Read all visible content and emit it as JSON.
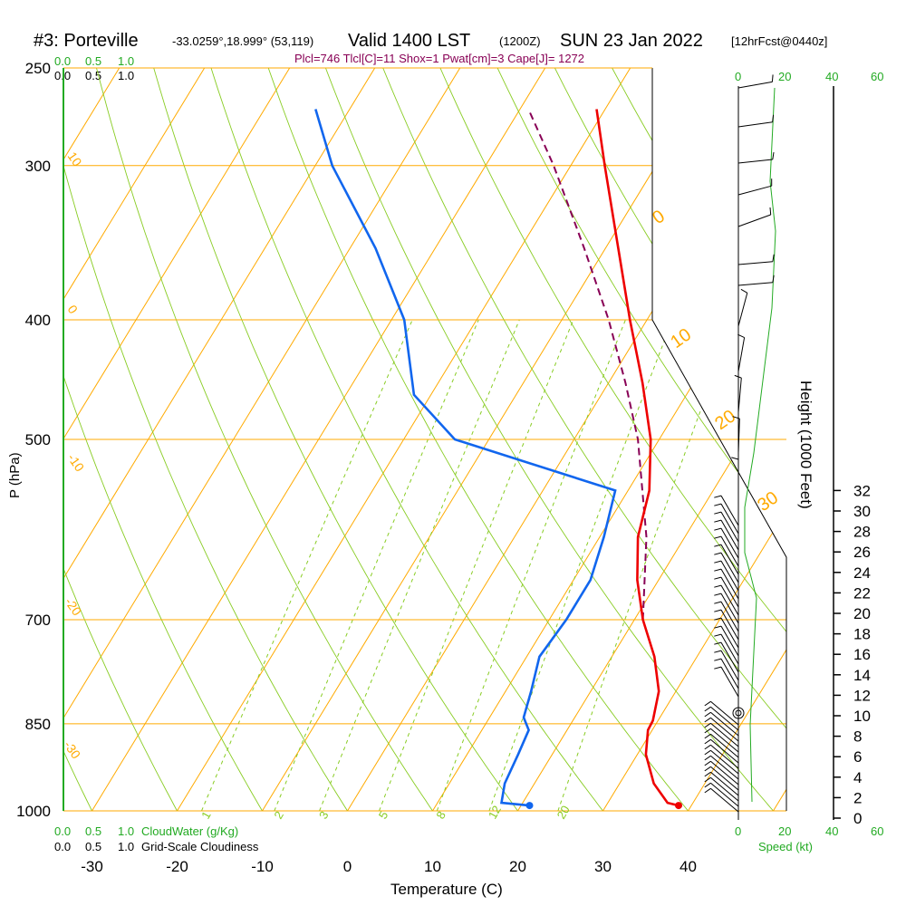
{
  "header": {
    "station": "#3: Porteville",
    "coords": "-33.0259°,18.999° (53,119)",
    "valid": "Valid 1400 LST",
    "valid_utc": "(1200Z)",
    "date": "SUN 23 Jan 2022",
    "forecast": "[12hrFcst@0440z]",
    "parcel_info": "Plcl=746 Tlcl[C]=11 Shox=1 Pwat[cm]=3 Cape[J]= 1272"
  },
  "cloud_scales": {
    "top_cloudwater_ticks": [
      "0.0",
      "0.5",
      "1.0"
    ],
    "top_cloudiness_ticks": [
      "0.0",
      "0.5",
      "1.0"
    ],
    "bottom_cloudwater_ticks": [
      "0.0",
      "0.5",
      "1.0"
    ],
    "bottom_cloudiness_ticks": [
      "0.0",
      "0.5",
      "1.0"
    ],
    "cloudwater_label": "CloudWater (g/Kg)",
    "cloudiness_label": "Grid-Scale Cloudiness"
  },
  "wind_panel": {
    "speed_ticks": [
      "0",
      "20",
      "40",
      "60"
    ],
    "speed_label": "Speed (kt)"
  },
  "colors": {
    "temperature": "#ee0000",
    "dewpoint": "#1166ee",
    "parcel": "#880055",
    "isobars_isotherms": "#ffaa00",
    "dry_adiabats": "#88cc22",
    "mixing_ratio": "#88cc22",
    "cloud_green": "#22aa22"
  },
  "chart_data": {
    "type": "skew-t",
    "xlabel": "Temperature (C)",
    "ylabel": "P (hPa)",
    "right_label": "Height (1000 Feet)",
    "x_ticks": [
      -30,
      -20,
      -10,
      0,
      10,
      20,
      30,
      40
    ],
    "pressure_levels": [
      250,
      300,
      400,
      500,
      700,
      850,
      1000
    ],
    "height_ticks": [
      0,
      2,
      4,
      6,
      8,
      10,
      12,
      14,
      16,
      18,
      20,
      22,
      24,
      26,
      28,
      30,
      32
    ],
    "isotherm_labels": [
      {
        "t": "10",
        "p": 300
      },
      {
        "t": "0",
        "p": 400
      },
      {
        "t": "-10",
        "p": 500
      },
      {
        "t": "-20",
        "p": 700
      },
      {
        "t": "-30",
        "p": 850
      },
      {
        "t": "0",
        "p": 280
      },
      {
        "t": "10",
        "p": 380
      },
      {
        "t": "20",
        "p": 480
      },
      {
        "t": "30",
        "p": 540
      }
    ],
    "mixing_ratio_labels": [
      "1",
      "2",
      "3",
      "5",
      "8",
      "12",
      "20"
    ],
    "temperature": [
      {
        "p": 990,
        "t": 38.5
      },
      {
        "p": 985,
        "t": 37.0
      },
      {
        "p": 950,
        "t": 34.0
      },
      {
        "p": 900,
        "t": 31.0
      },
      {
        "p": 860,
        "t": 29.5
      },
      {
        "p": 845,
        "t": 29.4
      },
      {
        "p": 800,
        "t": 28.0
      },
      {
        "p": 750,
        "t": 25.0
      },
      {
        "p": 700,
        "t": 21.0
      },
      {
        "p": 650,
        "t": 17.5
      },
      {
        "p": 600,
        "t": 14.5
      },
      {
        "p": 550,
        "t": 12.5
      },
      {
        "p": 500,
        "t": 9.0
      },
      {
        "p": 450,
        "t": 4.0
      },
      {
        "p": 400,
        "t": -2.0
      },
      {
        "p": 350,
        "t": -8.5
      },
      {
        "p": 300,
        "t": -16.0
      },
      {
        "p": 270,
        "t": -21.0
      }
    ],
    "dewpoint": [
      {
        "p": 990,
        "t": 21.0
      },
      {
        "p": 985,
        "t": 17.5
      },
      {
        "p": 950,
        "t": 16.5
      },
      {
        "p": 900,
        "t": 16.0
      },
      {
        "p": 860,
        "t": 15.5
      },
      {
        "p": 840,
        "t": 14.0
      },
      {
        "p": 800,
        "t": 13.0
      },
      {
        "p": 750,
        "t": 11.5
      },
      {
        "p": 700,
        "t": 12.0
      },
      {
        "p": 650,
        "t": 12.0
      },
      {
        "p": 600,
        "t": 10.5
      },
      {
        "p": 550,
        "t": 8.5
      },
      {
        "p": 500,
        "t": -14.0
      },
      {
        "p": 460,
        "t": -22.0
      },
      {
        "p": 400,
        "t": -28.5
      },
      {
        "p": 350,
        "t": -37.0
      },
      {
        "p": 300,
        "t": -48.0
      },
      {
        "p": 270,
        "t": -54.0
      }
    ],
    "parcel": [
      {
        "p": 700,
        "t": 21.0
      },
      {
        "p": 600,
        "t": 15.5
      },
      {
        "p": 500,
        "t": 7.5
      },
      {
        "p": 450,
        "t": 2.0
      },
      {
        "p": 400,
        "t": -4.5
      },
      {
        "p": 350,
        "t": -12.5
      },
      {
        "p": 300,
        "t": -22.0
      },
      {
        "p": 270,
        "t": -29.0
      }
    ],
    "surface_temperature_c": 38.5,
    "surface_dewpoint_c": 21.0
  }
}
